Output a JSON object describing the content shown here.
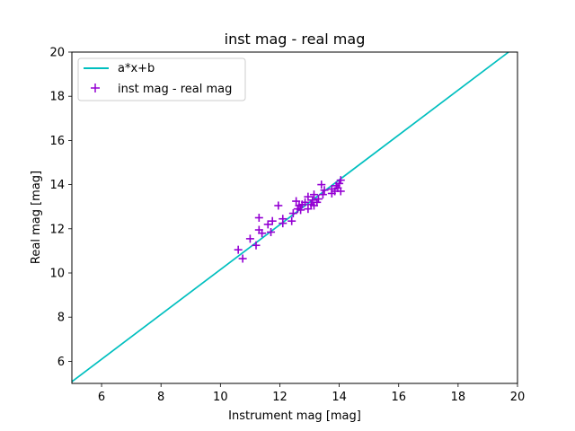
{
  "chart_data": {
    "type": "scatter",
    "title": "inst mag - real mag",
    "xlabel": "Instrument mag [mag]",
    "ylabel": "Real mag [mag]",
    "xlim": [
      5,
      20
    ],
    "ylim": [
      5,
      20
    ],
    "xticks": [
      "6",
      "8",
      "10",
      "12",
      "14",
      "16",
      "18",
      "20"
    ],
    "yticks": [
      "6",
      "8",
      "10",
      "12",
      "14",
      "16",
      "18",
      "20"
    ],
    "grid": false,
    "legend_position": "top-left",
    "colors": {
      "fit_line": "#00bfbf",
      "points": "#9400d3"
    },
    "series": [
      {
        "name": "a*x+b",
        "kind": "line",
        "x": [
          5.0,
          19.7
        ],
        "y": [
          5.08,
          20.0
        ]
      },
      {
        "name": "inst mag - real mag",
        "kind": "scatter",
        "marker": "+",
        "points": [
          [
            10.6,
            11.05
          ],
          [
            10.75,
            10.65
          ],
          [
            11.0,
            11.55
          ],
          [
            11.2,
            11.25
          ],
          [
            11.3,
            12.5
          ],
          [
            11.3,
            11.95
          ],
          [
            11.4,
            11.8
          ],
          [
            11.6,
            12.2
          ],
          [
            11.7,
            11.85
          ],
          [
            11.75,
            12.35
          ],
          [
            11.95,
            13.05
          ],
          [
            12.1,
            12.45
          ],
          [
            12.1,
            12.25
          ],
          [
            12.4,
            12.35
          ],
          [
            12.45,
            12.7
          ],
          [
            12.55,
            13.25
          ],
          [
            12.6,
            12.9
          ],
          [
            12.65,
            13.05
          ],
          [
            12.7,
            12.85
          ],
          [
            12.75,
            13.1
          ],
          [
            12.85,
            13.2
          ],
          [
            12.95,
            12.9
          ],
          [
            12.95,
            13.45
          ],
          [
            13.05,
            13.1
          ],
          [
            13.1,
            13.3
          ],
          [
            13.15,
            13.05
          ],
          [
            13.15,
            13.55
          ],
          [
            13.25,
            13.2
          ],
          [
            13.3,
            13.35
          ],
          [
            13.4,
            14.0
          ],
          [
            13.45,
            13.55
          ],
          [
            13.5,
            13.75
          ],
          [
            13.75,
            13.8
          ],
          [
            13.75,
            13.6
          ],
          [
            13.85,
            13.7
          ],
          [
            13.95,
            13.85
          ],
          [
            14.0,
            14.05
          ],
          [
            14.05,
            13.7
          ],
          [
            14.05,
            14.2
          ],
          [
            13.9,
            13.95
          ]
        ]
      }
    ]
  }
}
